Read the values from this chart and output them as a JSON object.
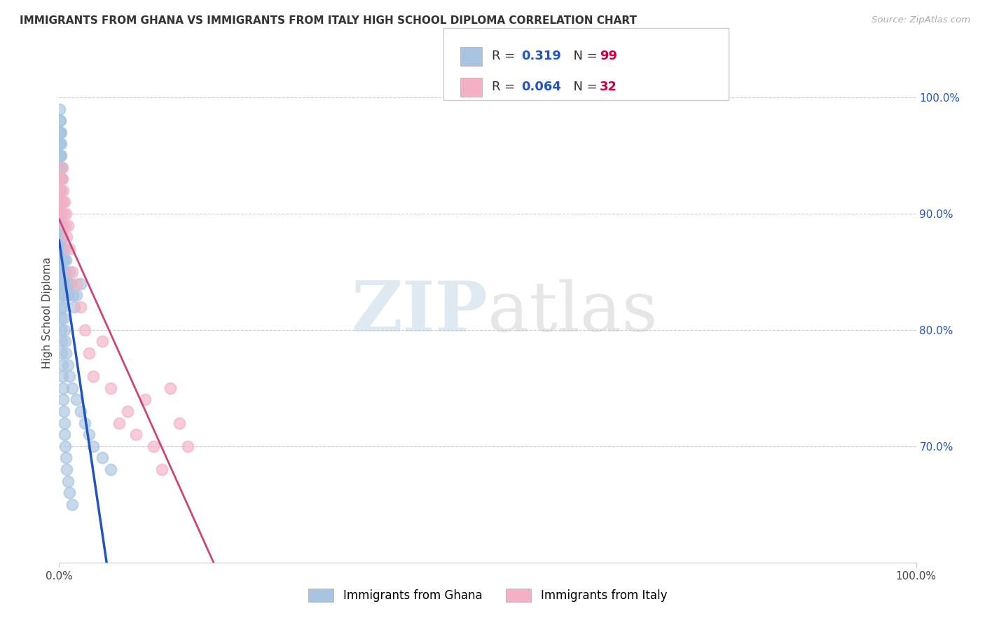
{
  "title": "IMMIGRANTS FROM GHANA VS IMMIGRANTS FROM ITALY HIGH SCHOOL DIPLOMA CORRELATION CHART",
  "source": "Source: ZipAtlas.com",
  "ylabel": "High School Diploma",
  "ghana_R": 0.319,
  "ghana_N": 99,
  "italy_R": 0.064,
  "italy_N": 32,
  "ghana_color": "#a8c4e0",
  "ghana_line_color": "#2255bb",
  "italy_color": "#f4b0c4",
  "italy_line_color": "#cc4477",
  "watermark_zip": "ZIP",
  "watermark_atlas": "atlas",
  "legend_label_ghana": "Immigrants from Ghana",
  "legend_label_italy": "Immigrants from Italy",
  "r_color": "#2255bb",
  "n_color": "#cc0044",
  "tick_color_y": "#2255bb",
  "grid_color": "#cccccc",
  "xmin": 0,
  "xmax": 100,
  "ymin": 60,
  "ymax": 103,
  "yticks": [
    70,
    80,
    90,
    100
  ],
  "ytick_labels": [
    "70.0%",
    "80.0%",
    "90.0%",
    "100.0%"
  ],
  "xtick_labels": [
    "0.0%",
    "100.0%"
  ],
  "ghana_x": [
    0.08,
    0.1,
    0.12,
    0.15,
    0.18,
    0.2,
    0.22,
    0.25,
    0.28,
    0.3,
    0.05,
    0.06,
    0.07,
    0.09,
    0.11,
    0.13,
    0.14,
    0.16,
    0.17,
    0.19,
    0.21,
    0.23,
    0.24,
    0.26,
    0.27,
    0.29,
    0.31,
    0.33,
    0.35,
    0.38,
    0.4,
    0.43,
    0.45,
    0.48,
    0.5,
    0.55,
    0.6,
    0.65,
    0.7,
    0.75,
    0.8,
    0.9,
    1.0,
    1.1,
    1.2,
    1.4,
    1.6,
    1.8,
    2.0,
    2.5,
    0.03,
    0.04,
    0.05,
    0.06,
    0.07,
    0.08,
    0.09,
    0.1,
    0.12,
    0.14,
    0.16,
    0.18,
    0.2,
    0.22,
    0.25,
    0.28,
    0.32,
    0.36,
    0.4,
    0.45,
    0.5,
    0.55,
    0.6,
    0.65,
    0.7,
    0.8,
    0.9,
    1.0,
    1.2,
    1.5,
    0.3,
    0.35,
    0.4,
    0.45,
    0.5,
    0.55,
    0.6,
    0.7,
    0.8,
    1.0,
    1.2,
    1.5,
    2.0,
    2.5,
    3.0,
    3.5,
    4.0,
    5.0,
    6.0
  ],
  "ghana_y": [
    96,
    97,
    95,
    98,
    94,
    96,
    97,
    95,
    93,
    94,
    99,
    98,
    97,
    96,
    95,
    94,
    93,
    92,
    91,
    90,
    91,
    90,
    89,
    88,
    87,
    86,
    85,
    87,
    88,
    89,
    88,
    87,
    86,
    85,
    84,
    83,
    85,
    86,
    87,
    86,
    85,
    84,
    83,
    84,
    85,
    84,
    83,
    82,
    83,
    84,
    93,
    94,
    92,
    91,
    90,
    89,
    88,
    87,
    86,
    85,
    84,
    83,
    82,
    81,
    80,
    79,
    78,
    77,
    76,
    75,
    74,
    73,
    72,
    71,
    70,
    69,
    68,
    67,
    66,
    65,
    86,
    85,
    84,
    83,
    82,
    81,
    80,
    79,
    78,
    77,
    76,
    75,
    74,
    73,
    72,
    71,
    70,
    69,
    68
  ],
  "italy_x": [
    0.15,
    0.2,
    0.25,
    0.3,
    0.35,
    0.4,
    0.45,
    0.5,
    0.55,
    0.6,
    0.7,
    0.8,
    0.9,
    1.0,
    1.2,
    1.5,
    2.0,
    2.5,
    3.0,
    3.5,
    4.0,
    5.0,
    6.0,
    7.0,
    8.0,
    9.0,
    10.0,
    11.0,
    12.0,
    13.0,
    14.0,
    15.0
  ],
  "italy_y": [
    90,
    91,
    92,
    93,
    94,
    93,
    92,
    91,
    90,
    91,
    89,
    90,
    88,
    89,
    87,
    85,
    84,
    82,
    80,
    78,
    76,
    79,
    75,
    72,
    73,
    71,
    74,
    70,
    68,
    75,
    72,
    70
  ]
}
